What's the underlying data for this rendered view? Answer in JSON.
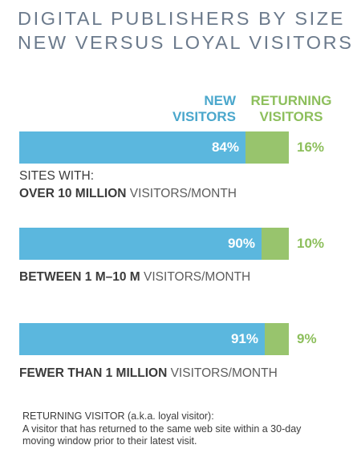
{
  "title_lines": [
    "DIGITAL PUBLISHERS BY SIZE",
    "NEW VERSUS LOYAL VISITORS"
  ],
  "legend": {
    "new": "NEW\nVISITORS",
    "returning": "RETURNING\nVISITORS"
  },
  "colors": {
    "title": "#6b7a8c",
    "new": "#5bb7de",
    "new_text": "#4aa7cc",
    "returning": "#98c46d",
    "returning_text": "#8dbf5c"
  },
  "chart_data": {
    "type": "bar",
    "stacked": true,
    "orientation": "horizontal",
    "categories": [
      "SITES WITH: OVER 10 MILLION VISITORS/MONTH",
      "BETWEEN 1 M–10 M VISITORS/MONTH",
      "FEWER THAN 1 MILLION VISITORS/MONTH"
    ],
    "series": [
      {
        "name": "NEW VISITORS",
        "values": [
          84,
          90,
          91
        ]
      },
      {
        "name": "RETURNING VISITORS",
        "values": [
          16,
          10,
          9
        ]
      }
    ],
    "value_labels": [
      [
        "84%",
        "90%",
        "91%"
      ],
      [
        "16%",
        "10%",
        "9%"
      ]
    ],
    "unit": "%",
    "xlim": [
      0,
      100
    ]
  },
  "captions": [
    {
      "prefix": "SITES WITH:",
      "strong": "OVER 10 MILLION",
      "rest": " VISITORS/MONTH"
    },
    {
      "prefix": "",
      "strong": "BETWEEN 1 M–10 M",
      "rest": " VISITORS/MONTH"
    },
    {
      "prefix": "",
      "strong": "FEWER THAN 1 MILLION",
      "rest": " VISITORS/MONTH"
    }
  ],
  "footnote": {
    "heading": "RETURNING VISITOR (a.k.a. loyal visitor):",
    "body": "A visitor that has returned to the same web site within a 30-day moving window prior to their latest visit."
  }
}
